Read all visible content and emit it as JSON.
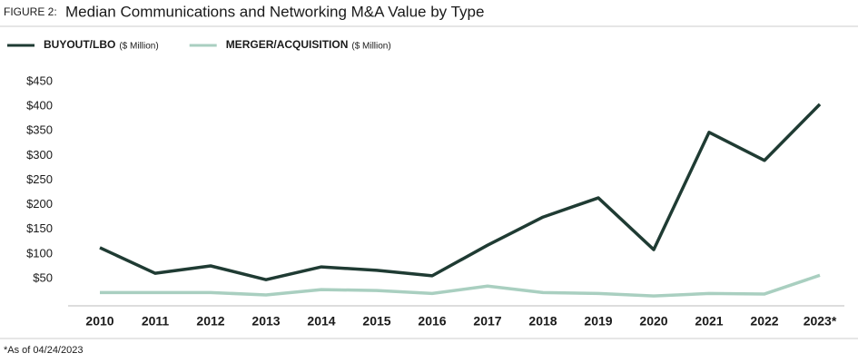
{
  "chart_data": {
    "type": "line",
    "figure_label": "FIGURE 2:",
    "title": "Median Communications and Networking M&A Value by Type",
    "legend_unit": "($ Million)",
    "note": "*As of 04/24/2023",
    "categories": [
      "2010",
      "2011",
      "2012",
      "2013",
      "2014",
      "2015",
      "2016",
      "2017",
      "2018",
      "2019",
      "2020",
      "2021",
      "2022",
      "2023*"
    ],
    "series": [
      {
        "name": "BUYOUT/LBO",
        "color": "#1f3b33",
        "values": [
          113,
          61,
          76,
          48,
          74,
          67,
          56,
          118,
          175,
          214,
          109,
          347,
          290,
          404
        ]
      },
      {
        "name": "MERGER/ACQUISITION",
        "color": "#a9cfc0",
        "values": [
          22,
          22,
          22,
          17,
          28,
          26,
          20,
          35,
          22,
          20,
          15,
          20,
          19,
          57
        ]
      }
    ],
    "ylim": [
      -5,
      470
    ],
    "yticks": [
      {
        "value": 50,
        "label": "$50"
      },
      {
        "value": 100,
        "label": "$100"
      },
      {
        "value": 150,
        "label": "$150"
      },
      {
        "value": 200,
        "label": "$200"
      },
      {
        "value": 250,
        "label": "$250"
      },
      {
        "value": 300,
        "label": "$300"
      },
      {
        "value": 350,
        "label": "$350"
      },
      {
        "value": 400,
        "label": "$400"
      },
      {
        "value": 450,
        "label": "$450"
      }
    ],
    "grid": false
  }
}
